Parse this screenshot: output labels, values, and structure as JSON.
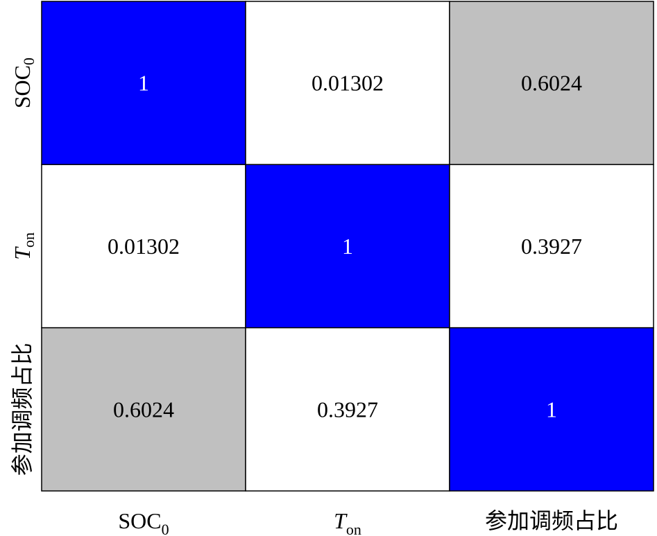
{
  "chart_data": {
    "type": "heatmap",
    "title": "",
    "xlabel": "",
    "ylabel": "",
    "x_labels": [
      {
        "main": "SOC",
        "sub": "0",
        "italic": false
      },
      {
        "main": "T",
        "sub": "on",
        "italic": true
      },
      {
        "main": "参加调频占比",
        "sub": "",
        "italic": false
      }
    ],
    "y_labels": [
      {
        "main": "SOC",
        "sub": "0",
        "italic": false
      },
      {
        "main": "T",
        "sub": "on",
        "italic": true
      },
      {
        "main": "参加调频占比",
        "sub": "",
        "italic": false
      }
    ],
    "values": [
      [
        "1",
        "0.01302",
        "0.6024"
      ],
      [
        "0.01302",
        "1",
        "0.3927"
      ],
      [
        "0.6024",
        "0.3927",
        "1"
      ]
    ],
    "grid": true,
    "colors": {
      "high": "#0000ff",
      "mid": "#c0c0c0",
      "low": "#ffffff",
      "text_on_high": "#ffffff",
      "text_default": "#000000",
      "border": "#000000"
    }
  }
}
